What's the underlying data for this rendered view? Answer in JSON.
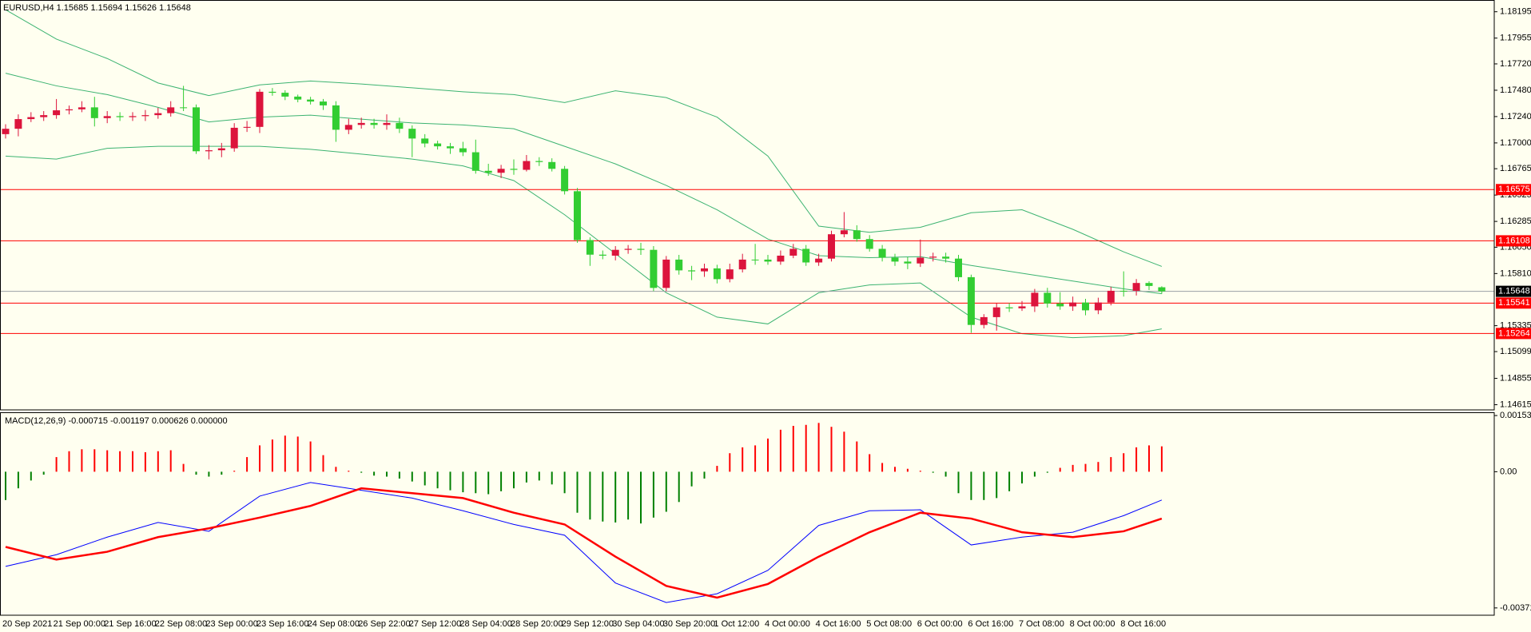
{
  "chart_data": [
    {
      "type": "candlestick",
      "title": "EURUSD,H4  1.15685 1.15694 1.15626 1.15648",
      "categories": [
        "20 Sep 2021",
        null,
        null,
        null,
        "21 Sep 00:00",
        null,
        null,
        null,
        "21 Sep 16:00",
        null,
        null,
        null,
        "22 Sep 08:00",
        null,
        null,
        null,
        "23 Sep 00:00",
        null,
        null,
        null,
        "23 Sep 16:00",
        null,
        null,
        null,
        "24 Sep 08:00",
        null,
        null,
        null,
        "26 Sep 22:00",
        null,
        null,
        null,
        "27 Sep 12:00",
        null,
        null,
        null,
        "28 Sep 04:00",
        null,
        null,
        null,
        "28 Sep 20:00",
        null,
        null,
        null,
        "29 Sep 12:00",
        null,
        null,
        null,
        "30 Sep 04:00",
        null,
        null,
        null,
        "30 Sep 20:00",
        null,
        null,
        null,
        "1 Oct 12:00",
        null,
        null,
        null,
        "4 Oct 00:00",
        null,
        null,
        null,
        "4 Oct 16:00",
        null,
        null,
        null,
        "5 Oct 08:00",
        null,
        null,
        null,
        "6 Oct 00:00",
        null,
        null,
        null,
        "6 Oct 16:00",
        null,
        null,
        null,
        "7 Oct 08:00",
        null,
        null,
        null,
        "8 Oct 00:00",
        null,
        null,
        null,
        "8 Oct 16:00",
        null,
        null,
        null
      ],
      "open": [
        1.1708,
        1.17129,
        1.17217,
        1.17235,
        1.17253,
        1.17297,
        1.17306,
        1.17324,
        1.17226,
        1.17244,
        1.17235,
        1.17244,
        1.17253,
        1.17271,
        1.17324,
        1.17324,
        1.16924,
        1.16933,
        1.16951,
        1.17138,
        1.17146,
        1.17466,
        1.17457,
        1.17422,
        1.17395,
        1.17377,
        1.17342,
        1.1712,
        1.17164,
        1.17182,
        1.17164,
        1.17182,
        1.17129,
        1.1704,
        1.16995,
        1.16969,
        1.16951,
        1.16915,
        1.16746,
        1.16728,
        1.16764,
        1.16755,
        1.16835,
        1.16826,
        1.16764,
        1.1656,
        1.16115,
        1.15982,
        1.15973,
        1.16026,
        1.16035,
        1.16026,
        1.15679,
        1.15937,
        1.15839,
        1.1583,
        1.15857,
        1.15759,
        1.15848,
        1.15937,
        1.15937,
        1.15919,
        1.15973,
        1.16035,
        1.15911,
        1.15946,
        1.16168,
        1.16204,
        1.16124,
        1.16035,
        1.15955,
        1.15919,
        1.15902,
        1.15955,
        1.15964,
        1.15946,
        1.15777,
        1.15342,
        1.15413,
        1.15502,
        1.15493,
        1.15511,
        1.15635,
        1.15537,
        1.15511,
        1.15546,
        1.15475,
        1.15546,
        1.15653,
        1.15653,
        1.15724,
        1.15685
      ],
      "high": [
        1.1717,
        1.1726,
        1.1728,
        1.1729,
        1.174,
        1.1734,
        1.1738,
        1.1742,
        1.1729,
        1.1728,
        1.1728,
        1.173,
        1.1732,
        1.1738,
        1.1752,
        1.1735,
        1.1698,
        1.17,
        1.1718,
        1.172,
        1.1749,
        1.175,
        1.1748,
        1.1744,
        1.1742,
        1.174,
        1.1738,
        1.1722,
        1.1723,
        1.1722,
        1.1726,
        1.1723,
        1.1716,
        1.1708,
        1.1702,
        1.17,
        1.1701,
        1.1703,
        1.1681,
        1.168,
        1.1685,
        1.1689,
        1.1687,
        1.1686,
        1.1679,
        1.1659,
        1.1614,
        1.1602,
        1.1606,
        1.1607,
        1.1609,
        1.1606,
        1.1597,
        1.1598,
        1.1588,
        1.159,
        1.1589,
        1.159,
        1.1599,
        1.1608,
        1.1598,
        1.1602,
        1.1608,
        1.1607,
        1.1599,
        1.162,
        1.1637,
        1.1625,
        1.1616,
        1.1607,
        1.1599,
        1.1596,
        1.1612,
        1.16,
        1.16,
        1.1598,
        1.158,
        1.1544,
        1.1554,
        1.1554,
        1.1556,
        1.1567,
        1.1568,
        1.1564,
        1.156,
        1.1558,
        1.1559,
        1.1569,
        1.1583,
        1.1576,
        1.1574,
        1.15694
      ],
      "low": [
        1.1704,
        1.1706,
        1.1719,
        1.172,
        1.1722,
        1.1726,
        1.1728,
        1.1715,
        1.1718,
        1.172,
        1.172,
        1.172,
        1.1722,
        1.1724,
        1.1729,
        1.169,
        1.1685,
        1.1687,
        1.1692,
        1.171,
        1.1709,
        1.1743,
        1.1739,
        1.1737,
        1.1735,
        1.173,
        1.1701,
        1.1708,
        1.1713,
        1.1713,
        1.1712,
        1.1709,
        1.1687,
        1.1696,
        1.1694,
        1.169,
        1.1688,
        1.1672,
        1.167,
        1.1668,
        1.1671,
        1.1674,
        1.1679,
        1.1674,
        1.1653,
        1.1609,
        1.1588,
        1.1594,
        1.1593,
        1.1599,
        1.1598,
        1.1565,
        1.1565,
        1.158,
        1.1575,
        1.1578,
        1.1572,
        1.1573,
        1.1582,
        1.1589,
        1.1589,
        1.1589,
        1.1595,
        1.1588,
        1.1588,
        1.1592,
        1.1614,
        1.161,
        1.1601,
        1.1592,
        1.1588,
        1.1585,
        1.1587,
        1.1592,
        1.1591,
        1.1574,
        1.1527,
        1.1531,
        1.1529,
        1.1546,
        1.1547,
        1.1546,
        1.155,
        1.1548,
        1.1547,
        1.1543,
        1.1544,
        1.1552,
        1.156,
        1.1561,
        1.1566,
        1.15626
      ],
      "close": [
        1.17129,
        1.17217,
        1.17235,
        1.17253,
        1.17297,
        1.17306,
        1.17324,
        1.17226,
        1.17244,
        1.17235,
        1.17244,
        1.17253,
        1.17271,
        1.17324,
        1.17324,
        1.16924,
        1.16933,
        1.16951,
        1.17138,
        1.17146,
        1.17466,
        1.17457,
        1.17422,
        1.17395,
        1.17377,
        1.17342,
        1.1712,
        1.17164,
        1.17182,
        1.17164,
        1.17182,
        1.17129,
        1.1704,
        1.16995,
        1.16969,
        1.16951,
        1.16915,
        1.16746,
        1.16728,
        1.16764,
        1.16755,
        1.16835,
        1.16826,
        1.16764,
        1.1656,
        1.16115,
        1.15982,
        1.15973,
        1.16026,
        1.16035,
        1.16026,
        1.15679,
        1.15937,
        1.15839,
        1.1583,
        1.15857,
        1.15759,
        1.15848,
        1.15937,
        1.15937,
        1.15919,
        1.15973,
        1.16035,
        1.15911,
        1.15946,
        1.16168,
        1.16204,
        1.16124,
        1.16035,
        1.15955,
        1.15919,
        1.15902,
        1.15955,
        1.15964,
        1.15946,
        1.15777,
        1.15342,
        1.15413,
        1.15502,
        1.15493,
        1.15511,
        1.15635,
        1.15537,
        1.15511,
        1.15546,
        1.15475,
        1.15546,
        1.15653,
        1.15653,
        1.15724,
        1.15697,
        1.15648
      ],
      "up_color": "#dc143c",
      "down_color": "#32cd32",
      "ylim": [
        1.14568,
        1.18302
      ],
      "yticks": [
        1.18195,
        1.17955,
        {
          "value": 1.1772,
          "label": "1.17720"
        },
        {
          "value": 1.1748,
          "label": "1.17480"
        },
        {
          "value": 1.1724,
          "label": "1.17240"
        },
        {
          "value": 1.17,
          "label": "1.17000"
        },
        1.16765,
        1.16525,
        1.16285,
        {
          "value": 1.1605,
          "label": "1.16050"
        },
        {
          "value": 1.1581,
          "label": "1.15810"
        },
        1.15335,
        1.15099,
        1.14855,
        1.14615
      ],
      "bands": {
        "color": "#3cb371",
        "x": [
          0,
          4,
          8,
          12,
          16,
          20,
          24,
          28,
          32,
          36,
          40,
          44,
          48,
          52,
          56,
          60,
          64,
          68,
          72,
          76,
          80,
          84,
          88,
          91
        ],
        "upper": [
          1.18213,
          1.17946,
          1.17769,
          1.17546,
          1.17431,
          1.17529,
          1.17564,
          1.17537,
          1.17502,
          1.17466,
          1.1744,
          1.17368,
          1.17475,
          1.17413,
          1.17235,
          1.1688,
          1.16242,
          1.16186,
          1.16231,
          1.16364,
          1.16391,
          1.16213,
          1.16008,
          1.15875
        ],
        "middle": [
          1.17635,
          1.1752,
          1.1744,
          1.17324,
          1.17191,
          1.17235,
          1.17253,
          1.17217,
          1.17182,
          1.17164,
          1.17129,
          1.16969,
          1.16809,
          1.16613,
          1.16391,
          1.16124,
          1.15973,
          1.15955,
          1.15964,
          1.15884,
          1.15813,
          1.15742,
          1.15671,
          1.15626
        ],
        "lower": [
          1.1688,
          1.16853,
          1.16951,
          1.16969,
          1.16969,
          1.16969,
          1.16942,
          1.16898,
          1.16853,
          1.16791,
          1.16657,
          1.16346,
          1.15991,
          1.15635,
          1.15413,
          1.15351,
          1.15635,
          1.15706,
          1.15724,
          1.15413,
          1.15262,
          1.15226,
          1.15244,
          1.15306
        ]
      },
      "levels": [
        {
          "value": 1.16575,
          "color": "#ff0000"
        },
        {
          "value": 1.16108,
          "color": "#ff0000"
        },
        {
          "value": 1.15541,
          "color": "#ff0000"
        },
        {
          "value": 1.15264,
          "color": "#ff0000"
        }
      ],
      "price_line": {
        "value": 1.15648,
        "color": "#9aa0a6",
        "label_color": "#000000"
      }
    },
    {
      "type": "macd",
      "title": "MACD(12,26,9) -0.000715 -0.001197 0.000626 0.000000",
      "values": [
        -0.000771,
        -0.000452,
        -0.000239,
        -8e-05,
        0.000399,
        0.000559,
        0.000612,
        0.000612,
        0.000585,
        0.000559,
        0.000559,
        0.000532,
        0.000559,
        0.000585,
        0.000213,
        -8e-05,
        -0.000133,
        -8e-05,
        2.7e-05,
        0.000399,
        0.000718,
        0.000878,
        0.000984,
        0.000958,
        0.000825,
        0.000452,
        0.000133,
        2.7e-05,
        -2.7e-05,
        -0.000106,
        -0.000133,
        -0.000186,
        -0.000266,
        -0.000372,
        -0.000452,
        -0.000505,
        -0.000559,
        -0.000585,
        -0.000612,
        -0.000532,
        -0.000452,
        -0.000293,
        -0.000239,
        -0.000346,
        -0.000585,
        -0.001117,
        -0.001303,
        -0.001357,
        -0.001383,
        -0.001303,
        -0.00141,
        -0.00125,
        -0.001091,
        -0.000825,
        -0.000399,
        -0.000186,
        0.00016,
        0.000505,
        0.000665,
        0.000718,
        0.000904,
        0.001144,
        0.00125,
        0.001277,
        0.00133,
        0.001224,
        0.001091,
        0.000825,
        0.000479,
        0.000239,
        0.000133,
        8e-05,
        2.7e-05,
        -2.7e-05,
        -0.000133,
        -0.000585,
        -0.000771,
        -0.000771,
        -0.000718,
        -0.000532,
        -0.000319,
        -0.000133,
        -2.7e-05,
        0.000106,
        0.000186,
        0.000213,
        0.000266,
        0.000399,
        0.000505,
        0.000665,
        0.000718,
        0.000692
      ],
      "pos_color": "#ff0000",
      "neg_color": "#008000",
      "series": [
        {
          "color": "#0000ff",
          "width": 1,
          "x": [
            0,
            4,
            8,
            12,
            16,
            20,
            24,
            28,
            32,
            36,
            40,
            44,
            48,
            52,
            56,
            60,
            64,
            68,
            72,
            76,
            80,
            84,
            88,
            91
          ],
          "values": [
            -0.00258,
            -0.002261,
            -0.001782,
            -0.001383,
            -0.001623,
            -0.000665,
            -0.000293,
            -0.000505,
            -0.000718,
            -0.001064,
            -0.001436,
            -0.001729,
            -0.003032,
            -0.003564,
            -0.003325,
            -0.002687,
            -0.001463,
            -0.001064,
            -0.001037,
            -0.001995,
            -0.001782,
            -0.001649,
            -0.001197,
            -0.000771
          ]
        },
        {
          "color": "#ff0000",
          "width": 2.5,
          "x": [
            0,
            4,
            8,
            12,
            16,
            20,
            24,
            28,
            32,
            36,
            40,
            44,
            48,
            52,
            56,
            60,
            64,
            68,
            72,
            76,
            80,
            84,
            88,
            91
          ],
          "values": [
            -0.002048,
            -0.002394,
            -0.002181,
            -0.001782,
            -0.001543,
            -0.00125,
            -0.000931,
            -0.000452,
            -0.000585,
            -0.000718,
            -0.001117,
            -0.001436,
            -0.002314,
            -0.003112,
            -0.003431,
            -0.003059,
            -0.002314,
            -0.001649,
            -0.001117,
            -0.001277,
            -0.001649,
            -0.001782,
            -0.001623,
            -0.001277
          ]
        }
      ],
      "ylim": [
        -0.00391,
        0.00162
      ],
      "yticks": [
        0.001531,
        {
          "value": 0,
          "label": "0.00"
        },
        -0.003711
      ]
    }
  ]
}
